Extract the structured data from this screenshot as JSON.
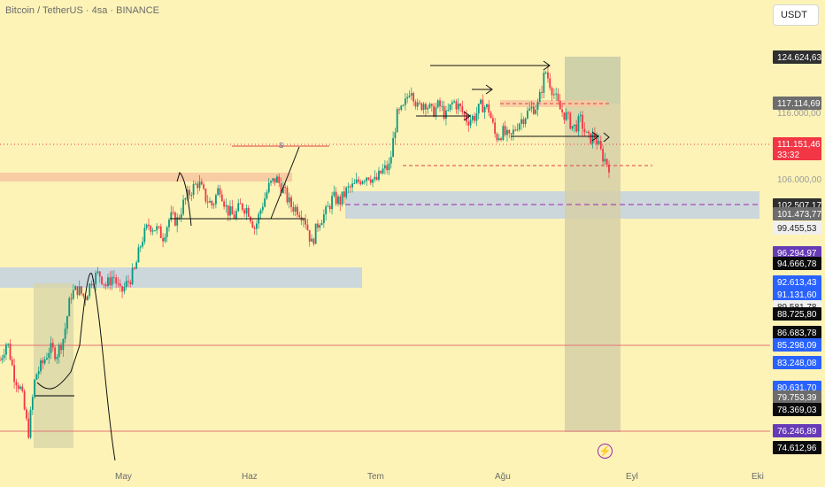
{
  "header": {
    "symbol_title": "Bitcoin / TetherUS · 4sa · BINANCE",
    "currency_button": "USDT"
  },
  "colors": {
    "background": "#fdf3b7",
    "candle_up": "#089981",
    "candle_down": "#f23645",
    "zone_blue": "#c6d4e0",
    "zone_orange": "#f7c6a0",
    "zone_grey": "#d6cfa8",
    "current_price": "#f23645"
  },
  "chart_data": {
    "type": "candlestick",
    "symbol": "Bitcoin / TetherUS",
    "timeframe": "4sa",
    "exchange": "BINANCE",
    "x_ticks": [
      "May",
      "Haz",
      "Tem",
      "Ağu",
      "Eyl",
      "Eki"
    ],
    "ylim": [
      73000,
      128000
    ],
    "grid": false,
    "price_path": [
      [
        0,
        86000
      ],
      [
        1,
        88500
      ],
      [
        2,
        84000
      ],
      [
        3,
        82000
      ],
      [
        4,
        76500
      ],
      [
        5,
        84000
      ],
      [
        6,
        85500
      ],
      [
        7,
        87500
      ],
      [
        8,
        86800
      ],
      [
        9,
        89000
      ],
      [
        10,
        94500
      ],
      [
        11,
        95200
      ],
      [
        12,
        94000
      ],
      [
        13,
        96500
      ],
      [
        14,
        97200
      ],
      [
        15,
        95600
      ],
      [
        16,
        97000
      ],
      [
        17,
        94600
      ],
      [
        18,
        96000
      ],
      [
        19,
        97500
      ],
      [
        20,
        101500
      ],
      [
        21,
        103500
      ],
      [
        22,
        103000
      ],
      [
        23,
        102000
      ],
      [
        24,
        104500
      ],
      [
        25,
        104000
      ],
      [
        26,
        106500
      ],
      [
        27,
        108000
      ],
      [
        28,
        109000
      ],
      [
        29,
        107000
      ],
      [
        30,
        106000
      ],
      [
        31,
        108500
      ],
      [
        32,
        105500
      ],
      [
        33,
        104500
      ],
      [
        34,
        106000
      ],
      [
        35,
        105500
      ],
      [
        36,
        103000
      ],
      [
        37,
        106000
      ],
      [
        38,
        108500
      ],
      [
        39,
        109500
      ],
      [
        40,
        108000
      ],
      [
        41,
        106000
      ],
      [
        42,
        105500
      ],
      [
        43,
        104500
      ],
      [
        44,
        101000
      ],
      [
        45,
        104000
      ],
      [
        46,
        105000
      ],
      [
        47,
        107000
      ],
      [
        48,
        106500
      ],
      [
        49,
        108000
      ],
      [
        50,
        108500
      ],
      [
        51,
        109500
      ],
      [
        52,
        110000
      ],
      [
        53,
        109000
      ],
      [
        54,
        110500
      ],
      [
        55,
        111000
      ],
      [
        56,
        117500
      ],
      [
        57,
        118500
      ],
      [
        58,
        121500
      ],
      [
        59,
        118500
      ],
      [
        60,
        119500
      ],
      [
        61,
        118000
      ],
      [
        62,
        119000
      ],
      [
        63,
        117500
      ],
      [
        64,
        119500
      ],
      [
        65,
        118500
      ],
      [
        66,
        117000
      ],
      [
        67,
        117500
      ],
      [
        68,
        119000
      ],
      [
        69,
        118500
      ],
      [
        70,
        114800
      ],
      [
        71,
        115500
      ],
      [
        72,
        114500
      ],
      [
        73,
        116500
      ],
      [
        74,
        117500
      ],
      [
        75,
        118500
      ],
      [
        76,
        119000
      ],
      [
        77,
        123500
      ],
      [
        78,
        121000
      ],
      [
        79,
        118500
      ],
      [
        80,
        117500
      ],
      [
        81,
        116000
      ],
      [
        82,
        117000
      ],
      [
        83,
        114500
      ],
      [
        84,
        115000
      ],
      [
        85,
        112500
      ],
      [
        86,
        111151
      ]
    ],
    "horizontal_levels": [
      111151.46,
      110000,
      102507.17,
      85298.09,
      76246.89
    ],
    "zones": [
      {
        "name": "resistance-zone-orange",
        "from": 106000,
        "to": 106900
      },
      {
        "name": "support-zone-blue-upper",
        "from": 99455.53,
        "to": 103800
      },
      {
        "name": "support-zone-blue-lower",
        "from": 93700,
        "to": 95600
      }
    ],
    "price_labels": [
      {
        "value": "124.624,63",
        "kind": "dark"
      },
      {
        "value": "117.114,69",
        "kind": "grey"
      },
      {
        "value": "116.000,00",
        "kind": "faint"
      },
      {
        "value": "111.151,46",
        "kind": "red",
        "countdown": "33:32"
      },
      {
        "value": "106.000,00",
        "kind": "faint"
      },
      {
        "value": "102.507,17",
        "kind": "dark"
      },
      {
        "value": "101.473,77",
        "kind": "grey"
      },
      {
        "value": "99.455,53",
        "kind": "light"
      },
      {
        "value": "96.294,97",
        "kind": "purple"
      },
      {
        "value": "94.666,78",
        "kind": "black"
      },
      {
        "value": "92.613,43",
        "kind": "blue"
      },
      {
        "value": "91.131,60",
        "kind": "blue"
      },
      {
        "value": "89.581,78",
        "kind": "light"
      },
      {
        "value": "88.725,80",
        "kind": "black"
      },
      {
        "value": "86.683,78",
        "kind": "black"
      },
      {
        "value": "85.298,09",
        "kind": "blue"
      },
      {
        "value": "83.248,08",
        "kind": "blue"
      },
      {
        "value": "80.631,70",
        "kind": "blue"
      },
      {
        "value": "79.753,39",
        "kind": "grey"
      },
      {
        "value": "78.369,03",
        "kind": "black"
      },
      {
        "value": "76.246,89",
        "kind": "purple"
      },
      {
        "value": "74.612,96",
        "kind": "black"
      }
    ]
  }
}
